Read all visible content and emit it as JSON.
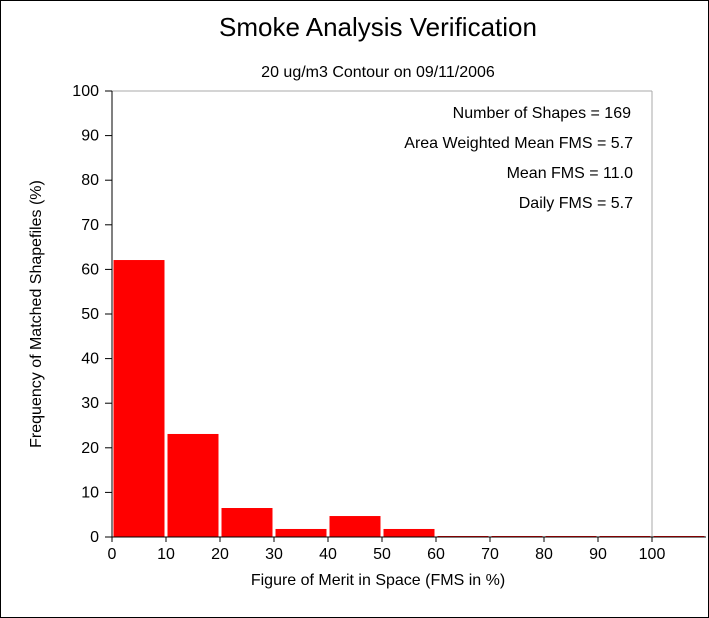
{
  "chart_data": {
    "type": "bar",
    "title": "Smoke Analysis Verification",
    "subtitle": "20 ug/m3 Contour on 09/11/2006",
    "xlabel": "Figure of Merit in Space (FMS in %)",
    "ylabel": "Frequency of Matched Shapefiles (%)",
    "xlim": [
      0,
      110
    ],
    "ylim": [
      0,
      100
    ],
    "x_ticks": [
      "0",
      "10",
      "20",
      "30",
      "40",
      "50",
      "60",
      "70",
      "80",
      "90",
      "100"
    ],
    "y_ticks": [
      "0",
      "10",
      "20",
      "30",
      "40",
      "50",
      "60",
      "70",
      "80",
      "90",
      "100"
    ],
    "bins": [
      {
        "from": 0,
        "to": 10,
        "value": 62.1
      },
      {
        "from": 10,
        "to": 20,
        "value": 23.1
      },
      {
        "from": 20,
        "to": 30,
        "value": 6.5
      },
      {
        "from": 30,
        "to": 40,
        "value": 1.8
      },
      {
        "from": 40,
        "to": 50,
        "value": 4.7
      },
      {
        "from": 50,
        "to": 60,
        "value": 1.8
      },
      {
        "from": 60,
        "to": 70,
        "value": 0
      },
      {
        "from": 70,
        "to": 80,
        "value": 0
      },
      {
        "from": 80,
        "to": 90,
        "value": 0
      },
      {
        "from": 90,
        "to": 100,
        "value": 0
      },
      {
        "from": 100,
        "to": 110,
        "value": 0
      }
    ],
    "annotations": [
      "Number of Shapes = 169",
      "Area Weighted Mean FMS = 5.7",
      "Mean FMS = 11.0",
      "Daily FMS = 5.7"
    ],
    "grid": false,
    "colors": {
      "bar": "#ff0000",
      "axis": "#000000",
      "frame": "#aaaaaa"
    }
  }
}
